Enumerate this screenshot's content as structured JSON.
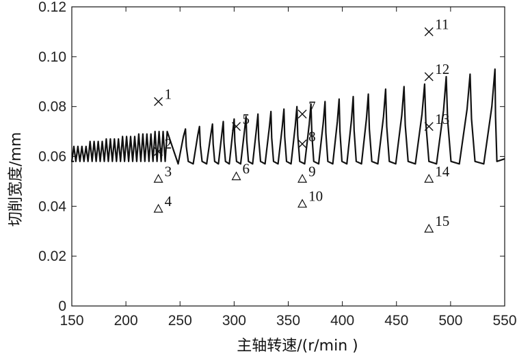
{
  "chart_data": {
    "type": "line",
    "title": "",
    "xlabel": "主轴转速/(r/min )",
    "ylabel": "切削宽度/mm",
    "xlim": [
      150,
      550
    ],
    "ylim": [
      0,
      0.12
    ],
    "xticks": [
      150,
      200,
      250,
      300,
      350,
      400,
      450,
      500,
      550
    ],
    "xtick_labels": [
      "150",
      "200",
      "250",
      "300",
      "350",
      "400",
      "450",
      "500",
      "550"
    ],
    "yticks": [
      0,
      0.02,
      0.04,
      0.06,
      0.08,
      0.1,
      0.12
    ],
    "ytick_labels": [
      "0",
      "0.02",
      "0.04",
      "0.06",
      "0.08",
      "0.10",
      "0.12"
    ],
    "grid": false,
    "series": [
      {
        "kind": "stability-lobe-curve",
        "peaks": [
          {
            "x": 165,
            "y": 0.064
          },
          {
            "x": 180,
            "y": 0.066
          },
          {
            "x": 195,
            "y": 0.067
          },
          {
            "x": 210,
            "y": 0.068
          },
          {
            "x": 225,
            "y": 0.069
          },
          {
            "x": 240,
            "y": 0.07
          },
          {
            "x": 255,
            "y": 0.071
          },
          {
            "x": 268,
            "y": 0.072
          },
          {
            "x": 280,
            "y": 0.073
          },
          {
            "x": 290,
            "y": 0.074
          },
          {
            "x": 300,
            "y": 0.075
          },
          {
            "x": 311,
            "y": 0.076
          },
          {
            "x": 322,
            "y": 0.077
          },
          {
            "x": 334,
            "y": 0.078
          },
          {
            "x": 346,
            "y": 0.079
          },
          {
            "x": 358,
            "y": 0.08
          },
          {
            "x": 371,
            "y": 0.081
          },
          {
            "x": 384,
            "y": 0.082
          },
          {
            "x": 397,
            "y": 0.083
          },
          {
            "x": 410,
            "y": 0.084
          },
          {
            "x": 424,
            "y": 0.085
          },
          {
            "x": 440,
            "y": 0.087
          },
          {
            "x": 457,
            "y": 0.088
          },
          {
            "x": 476,
            "y": 0.089
          },
          {
            "x": 496,
            "y": 0.092
          },
          {
            "x": 518,
            "y": 0.093
          },
          {
            "x": 541,
            "y": 0.095
          }
        ],
        "trough_y": 0.057
      }
    ],
    "points": [
      {
        "label": "1",
        "x": 230,
        "y": 0.082,
        "marker": "x"
      },
      {
        "label": "2",
        "x": 230,
        "y": 0.062,
        "marker": "x"
      },
      {
        "label": "3",
        "x": 230,
        "y": 0.051,
        "marker": "triangle"
      },
      {
        "label": "4",
        "x": 230,
        "y": 0.039,
        "marker": "triangle"
      },
      {
        "label": "5",
        "x": 302,
        "y": 0.072,
        "marker": "x"
      },
      {
        "label": "6",
        "x": 302,
        "y": 0.052,
        "marker": "triangle"
      },
      {
        "label": "7",
        "x": 363,
        "y": 0.077,
        "marker": "x"
      },
      {
        "label": "8",
        "x": 363,
        "y": 0.065,
        "marker": "x"
      },
      {
        "label": "9",
        "x": 363,
        "y": 0.051,
        "marker": "triangle"
      },
      {
        "label": "10",
        "x": 363,
        "y": 0.041,
        "marker": "triangle"
      },
      {
        "label": "11",
        "x": 480,
        "y": 0.11,
        "marker": "x"
      },
      {
        "label": "12",
        "x": 480,
        "y": 0.092,
        "marker": "x"
      },
      {
        "label": "13",
        "x": 480,
        "y": 0.072,
        "marker": "x"
      },
      {
        "label": "14",
        "x": 480,
        "y": 0.051,
        "marker": "triangle"
      },
      {
        "label": "15",
        "x": 480,
        "y": 0.031,
        "marker": "triangle"
      }
    ]
  }
}
